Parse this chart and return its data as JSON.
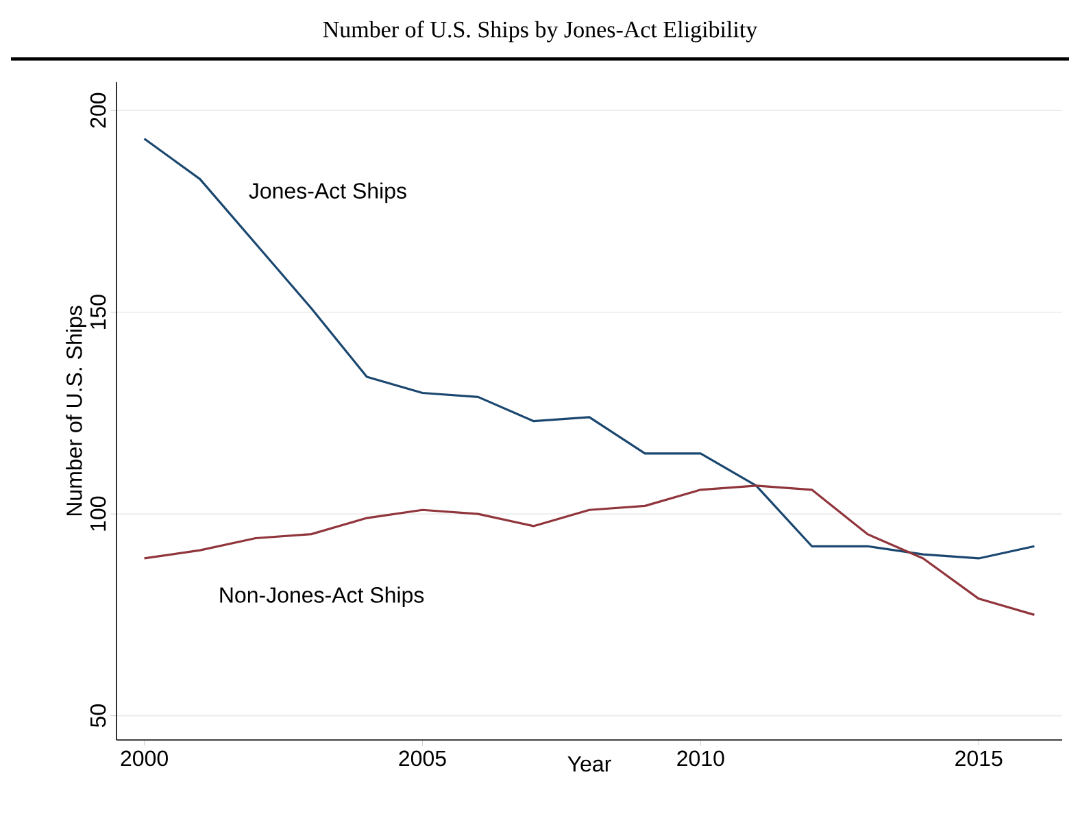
{
  "chart_data": {
    "type": "line",
    "title": "Number of U.S. Ships by Jones-Act Eligibility",
    "xlabel": "Year",
    "ylabel": "Number of U.S. Ships",
    "x": [
      2000,
      2001,
      2002,
      2003,
      2004,
      2005,
      2006,
      2007,
      2008,
      2009,
      2010,
      2011,
      2012,
      2013,
      2014,
      2015,
      2016
    ],
    "series": [
      {
        "name": "Jones-Act Ships",
        "color": "#1a476f",
        "values": [
          193,
          183,
          167,
          151,
          134,
          130,
          129,
          123,
          124,
          115,
          115,
          107,
          92,
          92,
          90,
          89,
          92
        ]
      },
      {
        "name": "Non-Jones-Act Ships",
        "color": "#90353b",
        "values": [
          89,
          91,
          94,
          95,
          99,
          101,
          100,
          97,
          101,
          102,
          106,
          107,
          106,
          95,
          89,
          79,
          75
        ]
      }
    ],
    "xlim": [
      1999.5,
      2016.5
    ],
    "ylim": [
      44,
      207
    ],
    "xticks": [
      2000,
      2005,
      2010,
      2015
    ],
    "yticks": [
      50,
      100,
      150,
      200
    ],
    "grid": "y",
    "marker": "none",
    "line_style": "solid"
  }
}
